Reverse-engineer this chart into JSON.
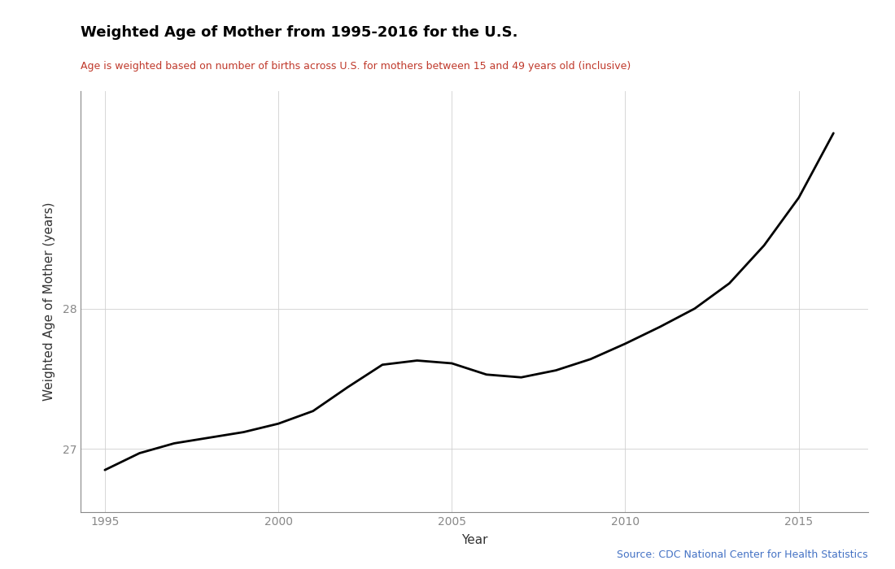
{
  "title": "Weighted Age of Mother from 1995-2016 for the U.S.",
  "subtitle": "Age is weighted based on number of births across U.S. for mothers between 15 and 49 years old (inclusive)",
  "xlabel": "Year",
  "ylabel": "Weighted Age of Mother (years)",
  "source_text": "Source: CDC National Center for Health Statistics",
  "title_color": "#000000",
  "subtitle_color": "#c0392b",
  "source_color": "#4472c4",
  "line_color": "#000000",
  "background_color": "#ffffff",
  "grid_color": "#d0d0d0",
  "years": [
    1995,
    1996,
    1997,
    1998,
    1999,
    2000,
    2001,
    2002,
    2003,
    2004,
    2005,
    2006,
    2007,
    2008,
    2009,
    2010,
    2011,
    2012,
    2013,
    2014,
    2015,
    2016
  ],
  "values": [
    26.85,
    26.97,
    27.04,
    27.08,
    27.12,
    27.18,
    27.27,
    27.44,
    27.6,
    27.63,
    27.61,
    27.53,
    27.51,
    27.56,
    27.64,
    27.75,
    27.87,
    28.0,
    28.18,
    28.45,
    28.79,
    29.25
  ],
  "ylim": [
    26.55,
    29.55
  ],
  "xlim": [
    1994.3,
    2017.0
  ],
  "yticks": [
    27,
    28
  ],
  "xticks": [
    1995,
    2000,
    2005,
    2010,
    2015
  ],
  "title_fontsize": 13,
  "subtitle_fontsize": 9,
  "axis_label_fontsize": 11,
  "tick_fontsize": 10,
  "source_fontsize": 9,
  "line_width": 2.0
}
